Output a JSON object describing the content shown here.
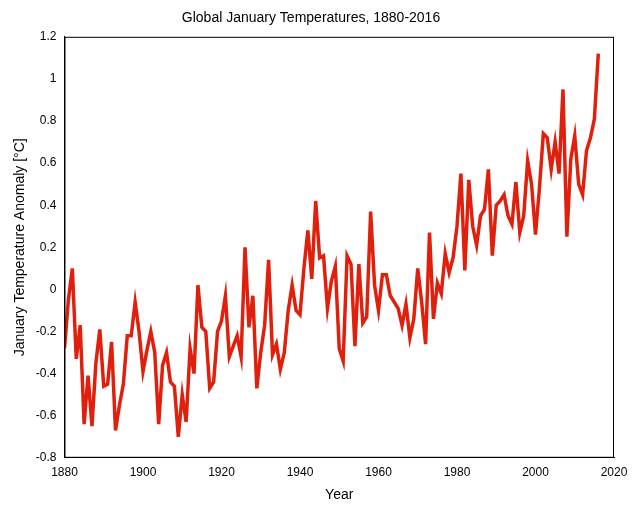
{
  "chart_data": {
    "type": "line",
    "title": "Global January Temperatures, 1880-2016",
    "x_label": "Year",
    "y_label": "January Temperature Anomaly [°C]",
    "x": [
      1880,
      1881,
      1882,
      1883,
      1884,
      1885,
      1886,
      1887,
      1888,
      1889,
      1890,
      1891,
      1892,
      1893,
      1894,
      1895,
      1896,
      1897,
      1898,
      1899,
      1900,
      1901,
      1902,
      1903,
      1904,
      1905,
      1906,
      1907,
      1908,
      1909,
      1910,
      1911,
      1912,
      1913,
      1914,
      1915,
      1916,
      1917,
      1918,
      1919,
      1920,
      1921,
      1922,
      1923,
      1924,
      1925,
      1926,
      1927,
      1928,
      1929,
      1930,
      1931,
      1932,
      1933,
      1934,
      1935,
      1936,
      1937,
      1938,
      1939,
      1940,
      1941,
      1942,
      1943,
      1944,
      1945,
      1946,
      1947,
      1948,
      1949,
      1950,
      1951,
      1952,
      1953,
      1954,
      1955,
      1956,
      1957,
      1958,
      1959,
      1960,
      1961,
      1962,
      1963,
      1964,
      1965,
      1966,
      1967,
      1968,
      1969,
      1970,
      1971,
      1972,
      1973,
      1974,
      1975,
      1976,
      1977,
      1978,
      1979,
      1980,
      1981,
      1982,
      1983,
      1984,
      1985,
      1986,
      1987,
      1988,
      1989,
      1990,
      1991,
      1992,
      1993,
      1994,
      1995,
      1996,
      1997,
      1998,
      1999,
      2000,
      2001,
      2002,
      2003,
      2004,
      2005,
      2006,
      2007,
      2008,
      2009,
      2010,
      2011,
      2012,
      2013,
      2014,
      2015,
      2016
    ],
    "values": [
      -0.28,
      -0.05,
      0.1,
      -0.33,
      -0.17,
      -0.64,
      -0.41,
      -0.65,
      -0.35,
      -0.19,
      -0.46,
      -0.45,
      -0.25,
      -0.67,
      -0.55,
      -0.45,
      -0.22,
      -0.22,
      -0.06,
      -0.2,
      -0.39,
      -0.29,
      -0.2,
      -0.3,
      -0.64,
      -0.36,
      -0.3,
      -0.44,
      -0.46,
      -0.7,
      -0.5,
      -0.63,
      -0.28,
      -0.4,
      0.02,
      -0.18,
      -0.2,
      -0.47,
      -0.44,
      -0.2,
      -0.15,
      -0.03,
      -0.32,
      -0.27,
      -0.22,
      -0.32,
      0.2,
      -0.18,
      -0.03,
      -0.47,
      -0.3,
      -0.17,
      0.14,
      -0.31,
      -0.26,
      -0.38,
      -0.3,
      -0.1,
      0.02,
      -0.1,
      -0.12,
      0.1,
      0.28,
      0.05,
      0.42,
      0.15,
      0.16,
      -0.09,
      0.04,
      0.11,
      -0.28,
      -0.34,
      0.16,
      0.12,
      -0.27,
      0.12,
      -0.16,
      -0.13,
      0.37,
      0.02,
      -0.1,
      0.07,
      0.07,
      -0.03,
      -0.06,
      -0.09,
      -0.17,
      -0.07,
      -0.23,
      -0.14,
      0.1,
      -0.06,
      -0.26,
      0.27,
      -0.14,
      0.03,
      -0.02,
      0.17,
      0.08,
      0.15,
      0.3,
      0.55,
      0.09,
      0.52,
      0.3,
      0.21,
      0.35,
      0.38,
      0.57,
      0.16,
      0.4,
      0.42,
      0.45,
      0.35,
      0.31,
      0.51,
      0.27,
      0.35,
      0.61,
      0.5,
      0.26,
      0.48,
      0.74,
      0.72,
      0.57,
      0.7,
      0.55,
      0.95,
      0.25,
      0.62,
      0.73,
      0.5,
      0.45,
      0.66,
      0.72,
      0.81,
      1.12
    ],
    "color": "#e0200c",
    "xlim": [
      1880,
      2020
    ],
    "xticks": [
      1880,
      1900,
      1920,
      1940,
      1960,
      1980,
      2000,
      2020
    ],
    "ylim": [
      -0.8,
      1.2
    ],
    "yticks": [
      -0.8,
      -0.6,
      -0.4,
      -0.2,
      0,
      0.2,
      0.4,
      0.6,
      0.8,
      1,
      1.2
    ],
    "grid": false
  }
}
